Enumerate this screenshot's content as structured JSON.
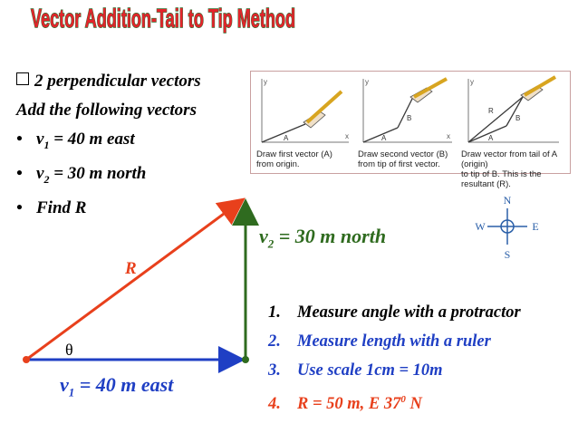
{
  "title": "Vector Addition-Tail to Tip Method",
  "bullets": {
    "heading": "2 perpendicular vectors",
    "intro": "Add the following vectors",
    "v1_prefix": "v",
    "v1_sub": "1",
    "v1_rest": " = 40 m east",
    "v2_prefix": "v",
    "v2_sub": "2",
    "v2_rest": " = 30 m north",
    "find": "Find R"
  },
  "panel": {
    "captions": [
      [
        "Draw first vector (A)",
        "from origin."
      ],
      [
        "Draw second vector (B)",
        "from tip of first vector."
      ],
      [
        "Draw vector from tail of A (origin)",
        "to tip of B. This is the resultant (R)."
      ]
    ],
    "vector_letters": [
      "A",
      "A",
      "B",
      "A",
      "B",
      "R"
    ],
    "axis_x": "x",
    "axis_y": "y"
  },
  "diagram": {
    "v2_label_prefix": "v",
    "v2_label_sub": "2",
    "v2_label_rest": " = 30 m north",
    "v1_label_prefix": "v",
    "v1_label_sub": "1",
    "v1_label_rest": " = 40 m east",
    "r_label": "R",
    "theta": "θ"
  },
  "compass": {
    "n": "N",
    "s": "S",
    "e": "E",
    "w": "W"
  },
  "steps": [
    {
      "num": "1.",
      "text": "Measure angle with  a protractor"
    },
    {
      "num": "2.",
      "text": "Measure length with a ruler"
    },
    {
      "num": "3.",
      "text": "Use scale 1cm = 10m"
    },
    {
      "num": "4.",
      "text": "R = 50 m,  E 37",
      "sup": "0",
      "after": " N"
    }
  ],
  "colors": {
    "title": "#e3242b",
    "title_outline": "#2e6b2e",
    "r_vector": "#e8401c",
    "v1_vector": "#1f3fc4",
    "v2_vector": "#2f6b1f",
    "v2_label": "#2f6b1f",
    "r_label": "#e8401c",
    "step1": "#000000",
    "step2": "#1f3fc4",
    "step3": "#1f3fc4",
    "step4": "#e8401c",
    "compass": "#2a5fa8"
  }
}
